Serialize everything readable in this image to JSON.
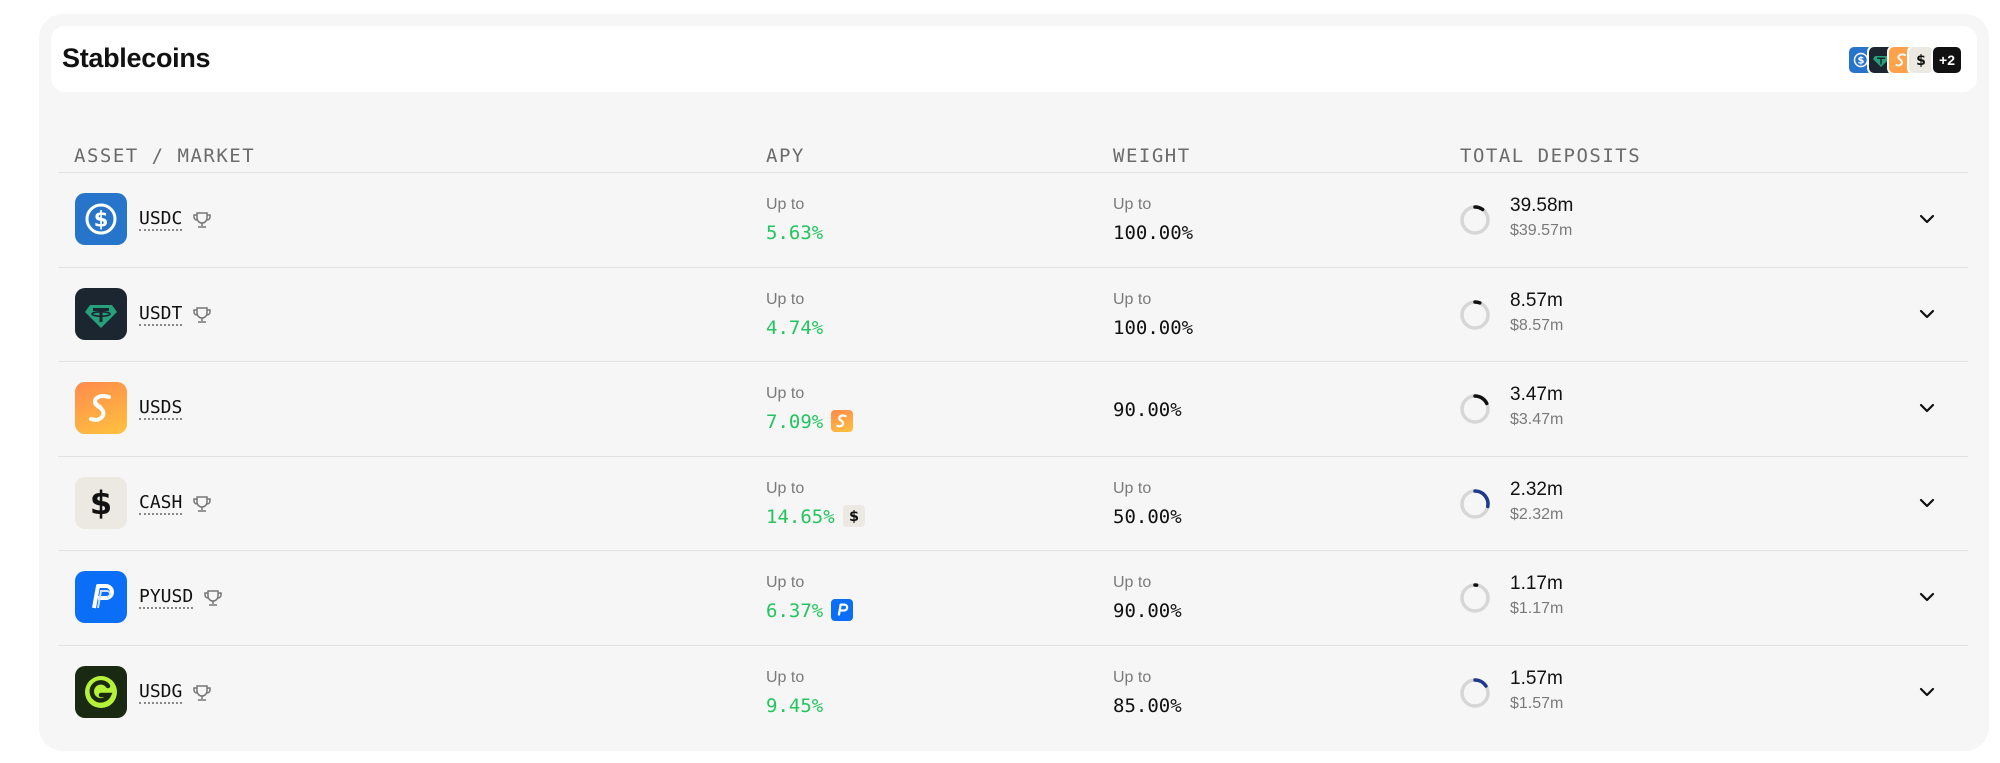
{
  "header": {
    "title": "Stablecoins",
    "stack_more": "+2"
  },
  "columns": {
    "asset": "ASSET / MARKET",
    "apy": "APY",
    "weight": "WEIGHT",
    "deposits": "TOTAL DEPOSITS"
  },
  "rows": [
    {
      "asset": "USDC",
      "trophy": true,
      "apy_label": "Up to",
      "apy": "5.63%",
      "apy_badge": "",
      "weight_label": "Up to",
      "weight": "100.00%",
      "deposits": "39.58m",
      "deposits_usd": "$39.57m",
      "fill": 0.1,
      "ring_color": "#111111"
    },
    {
      "asset": "USDT",
      "trophy": true,
      "apy_label": "Up to",
      "apy": "4.74%",
      "apy_badge": "",
      "weight_label": "Up to",
      "weight": "100.00%",
      "deposits": "8.57m",
      "deposits_usd": "$8.57m",
      "fill": 0.06,
      "ring_color": "#111111"
    },
    {
      "asset": "USDS",
      "trophy": false,
      "apy_label": "Up to",
      "apy": "7.09%",
      "apy_badge": "usds",
      "weight_label": "",
      "weight": "90.00%",
      "deposits": "3.47m",
      "deposits_usd": "$3.47m",
      "fill": 0.18,
      "ring_color": "#111111"
    },
    {
      "asset": "CASH",
      "trophy": true,
      "apy_label": "Up to",
      "apy": "14.65%",
      "apy_badge": "cash",
      "weight_label": "Up to",
      "weight": "50.00%",
      "deposits": "2.32m",
      "deposits_usd": "$2.32m",
      "fill": 0.28,
      "ring_color": "#1e3a8a"
    },
    {
      "asset": "PYUSD",
      "trophy": true,
      "apy_label": "Up to",
      "apy": "6.37%",
      "apy_badge": "pyusd",
      "weight_label": "Up to",
      "weight": "90.00%",
      "deposits": "1.17m",
      "deposits_usd": "$1.17m",
      "fill": 0.02,
      "ring_color": "#111111"
    },
    {
      "asset": "USDG",
      "trophy": true,
      "apy_label": "Up to",
      "apy": "9.45%",
      "apy_badge": "",
      "weight_label": "Up to",
      "weight": "85.00%",
      "deposits": "1.57m",
      "deposits_usd": "$1.57m",
      "fill": 0.16,
      "ring_color": "#1e3a8a"
    }
  ],
  "icons": {
    "usdc": {
      "bg": "#2775ca",
      "name": "usdc-icon"
    },
    "usdt": {
      "bg": "#1b2631",
      "name": "usdt-icon"
    },
    "usds": {
      "bg": "#ffa24a",
      "name": "usds-icon"
    },
    "cash": {
      "bg": "#ece8e2",
      "name": "cash-icon"
    },
    "pyusd": {
      "bg": "#0a6ef6",
      "name": "pyusd-icon"
    },
    "usdg": {
      "bg": "#1a2a12",
      "name": "usdg-icon"
    }
  }
}
